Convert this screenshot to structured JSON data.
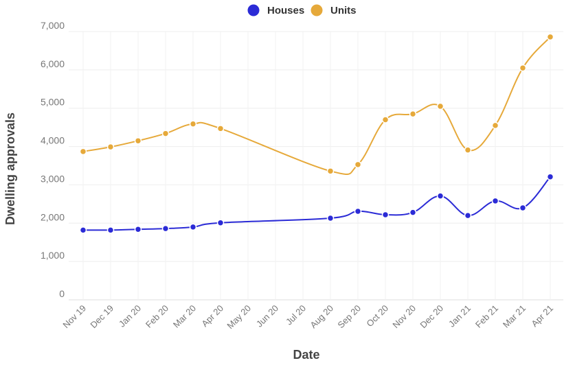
{
  "chart_data": {
    "type": "line",
    "xlabel": "Date",
    "ylabel": "Dwelling approvals",
    "ylim": [
      0,
      7000
    ],
    "yticks": [
      0,
      1000,
      2000,
      3000,
      4000,
      5000,
      6000,
      7000
    ],
    "ytick_labels": [
      "0",
      "1,000",
      "2,000",
      "3,000",
      "4,000",
      "5,000",
      "6,000",
      "7,000"
    ],
    "categories": [
      "Nov 19",
      "Dec 19",
      "Jan 20",
      "Feb 20",
      "Mar 20",
      "Apr 20",
      "May 20",
      "Jun 20",
      "Jul 20",
      "Aug 20",
      "Sep 20",
      "Oct 20",
      "Nov 20",
      "Dec 20",
      "Jan 21",
      "Feb 21",
      "Mar 21",
      "Apr 21"
    ],
    "legend_position": "top-center",
    "grid": true,
    "series": [
      {
        "name": "Houses",
        "color": "#2b2bd6",
        "values": [
          1820,
          1820,
          1840,
          1860,
          1900,
          2010,
          null,
          null,
          null,
          2130,
          2310,
          2220,
          2280,
          2710,
          2200,
          2580,
          2400,
          3210
        ]
      },
      {
        "name": "Units",
        "color": "#e6a93a",
        "values": [
          3870,
          3990,
          4150,
          4340,
          4590,
          4470,
          null,
          null,
          null,
          3360,
          3530,
          4700,
          4850,
          5050,
          3910,
          4550,
          6050,
          6860
        ]
      }
    ]
  }
}
